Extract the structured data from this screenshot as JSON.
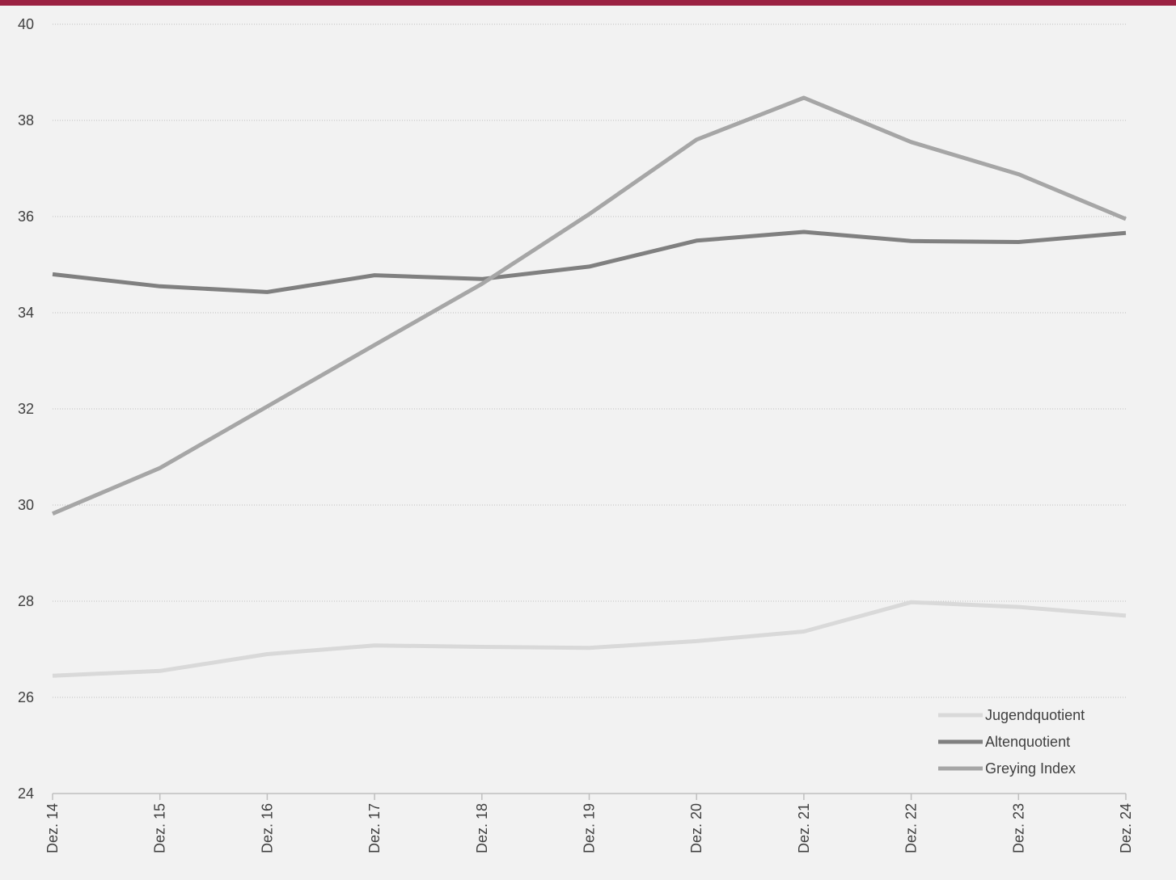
{
  "colors": {
    "top_bar": "#9b2242",
    "background": "#f2f2f2",
    "grid": "#bfbfbf",
    "axis": "#bfbfbf",
    "text": "#404040"
  },
  "chart_data": {
    "type": "line",
    "title": "",
    "xlabel": "",
    "ylabel": "",
    "categories": [
      "Dez. 14",
      "Dez. 15",
      "Dez. 16",
      "Dez. 17",
      "Dez. 18",
      "Dez. 19",
      "Dez. 20",
      "Dez. 21",
      "Dez. 22",
      "Dez. 23",
      "Dez. 24"
    ],
    "ylim": [
      24,
      40
    ],
    "yticks": [
      24,
      26,
      28,
      30,
      32,
      34,
      36,
      38,
      40
    ],
    "grid": true,
    "legend_position": "bottom-right",
    "series": [
      {
        "name": "Jugendquotient",
        "color": "#d9d9d9",
        "values": [
          26.45,
          26.55,
          26.9,
          27.08,
          27.05,
          27.03,
          27.17,
          27.37,
          27.98,
          27.88,
          27.7
        ]
      },
      {
        "name": "Altenquotient",
        "color": "#808080",
        "values": [
          34.8,
          34.55,
          34.43,
          34.78,
          34.7,
          34.96,
          35.5,
          35.68,
          35.49,
          35.47,
          35.66
        ]
      },
      {
        "name": "Greying Index",
        "color": "#a6a6a6",
        "values": [
          29.82,
          30.77,
          32.05,
          33.33,
          34.6,
          36.05,
          37.6,
          38.47,
          37.55,
          36.88,
          35.95
        ]
      }
    ]
  }
}
